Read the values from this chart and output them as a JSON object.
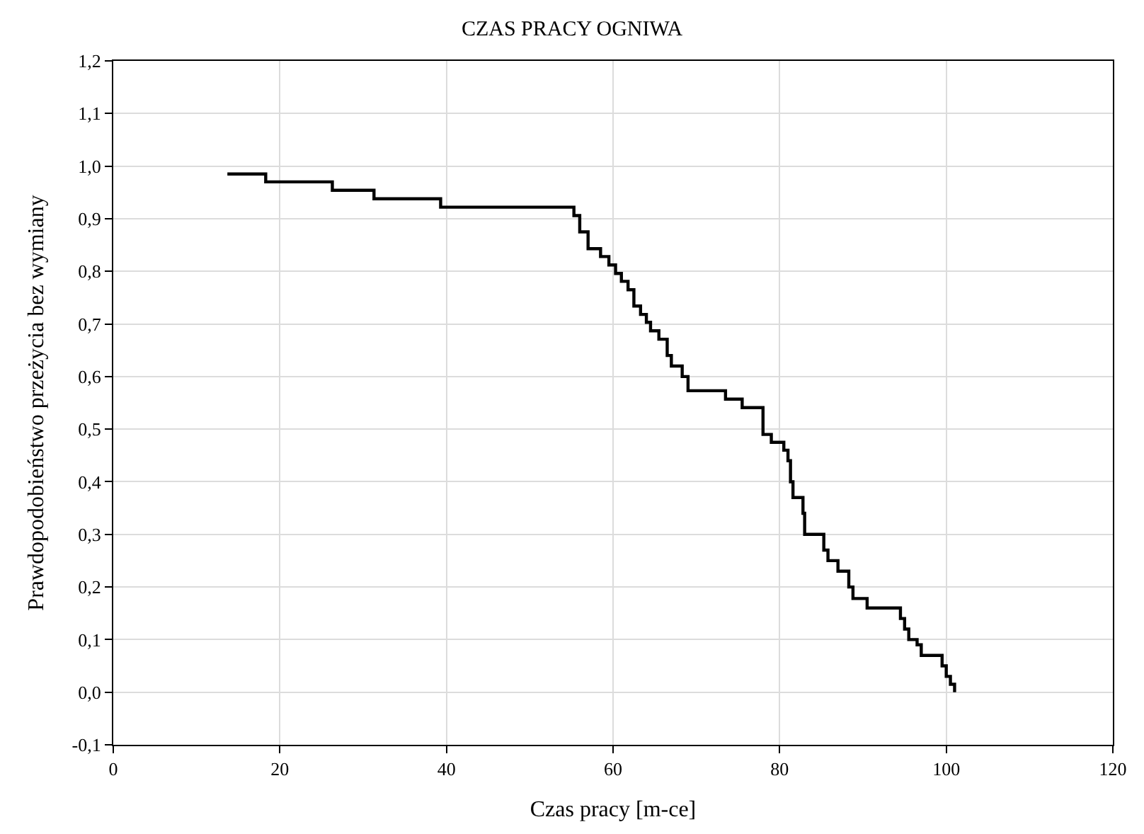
{
  "chart_data": {
    "type": "step",
    "title": "CZAS PRACY OGNIWA",
    "xlabel": "Czas pracy [m-ce]",
    "ylabel": "Prawdopodobieństwo przeżycia bez wymiany",
    "series": [
      {
        "color": "#000000",
        "x": [
          13.7,
          18.3,
          26.3,
          31.3,
          39.3,
          55.3,
          56,
          57,
          58.5,
          59.5,
          60.3,
          61,
          61.8,
          62.5,
          63.3,
          64,
          64.5,
          65.5,
          66.5,
          67,
          68.3,
          69,
          73.5,
          75.5,
          78,
          79,
          80.5,
          81,
          81.3,
          81.6,
          82.8,
          83,
          85.3,
          85.8,
          87,
          88.3,
          88.8,
          90.5,
          94.5,
          95,
          95.5,
          96.5,
          97,
          99.5,
          100,
          100.5,
          101
        ],
        "values": [
          0.985,
          0.97,
          0.954,
          0.938,
          0.922,
          0.906,
          0.875,
          0.843,
          0.828,
          0.812,
          0.796,
          0.781,
          0.765,
          0.734,
          0.718,
          0.703,
          0.687,
          0.671,
          0.64,
          0.62,
          0.6,
          0.573,
          0.557,
          0.541,
          0.49,
          0.475,
          0.46,
          0.44,
          0.4,
          0.37,
          0.34,
          0.3,
          0.27,
          0.25,
          0.23,
          0.2,
          0.178,
          0.16,
          0.14,
          0.12,
          0.1,
          0.09,
          0.07,
          0.05,
          0.03,
          0.015,
          0.0
        ]
      }
    ],
    "xlim": [
      0,
      120
    ],
    "xticks": [
      0,
      20,
      40,
      60,
      80,
      100,
      120
    ],
    "ylim": [
      -0.1,
      1.2
    ],
    "yticks": [
      {
        "value": -0.1,
        "label": "-0,1"
      },
      {
        "value": 0,
        "label": "0,0"
      },
      {
        "value": 0.1,
        "label": "0,1"
      },
      {
        "value": 0.2,
        "label": "0,2"
      },
      {
        "value": 0.3,
        "label": "0,3"
      },
      {
        "value": 0.4,
        "label": "0,4"
      },
      {
        "value": 0.5,
        "label": "0,5"
      },
      {
        "value": 0.6,
        "label": "0,6"
      },
      {
        "value": 0.7,
        "label": "0,7"
      },
      {
        "value": 0.8,
        "label": "0,8"
      },
      {
        "value": 0.9,
        "label": "0,9"
      },
      {
        "value": 1.0,
        "label": "1,0"
      },
      {
        "value": 1.1,
        "label": "1,1"
      },
      {
        "value": 1.2,
        "label": "1,2"
      }
    ],
    "grid": true,
    "marker": "none",
    "line_style": "solid"
  }
}
